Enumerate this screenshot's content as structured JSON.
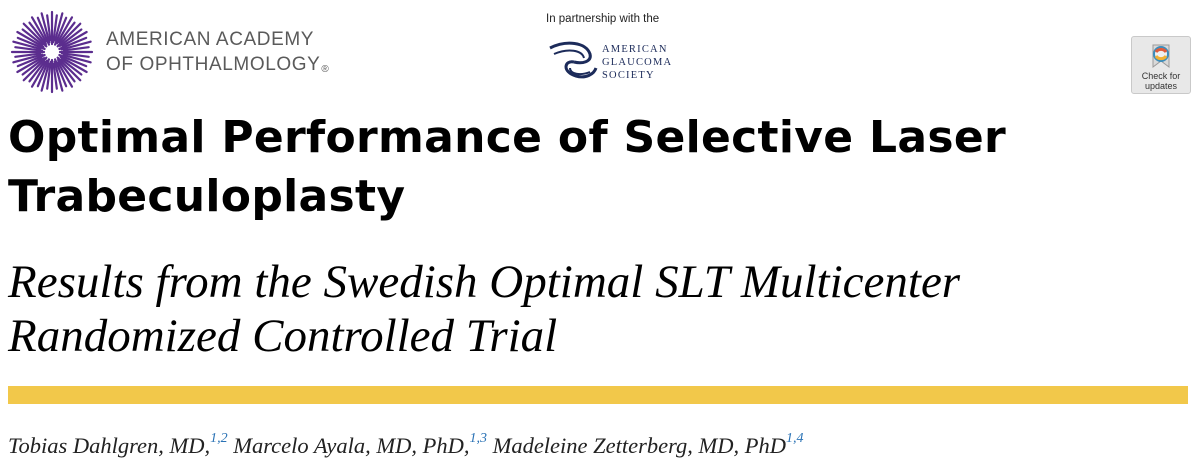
{
  "header": {
    "aao_name_line1": "AMERICAN ACADEMY",
    "aao_name_line2": "OF OPHTHALMOLOGY",
    "aao_registered": "®",
    "partnership_label": "In partnership with the",
    "ags_line1": "American",
    "ags_line2": "Glaucoma",
    "ags_line3": "Society",
    "check_updates_line1": "Check for",
    "check_updates_line2": "updates"
  },
  "article": {
    "title": "Optimal Performance of Selective Laser Trabeculoplasty",
    "subtitle": "Results from the Swedish Optimal SLT Multicenter Randomized Controlled Trial"
  },
  "authors": [
    {
      "name": "Tobias Dahlgren, MD,",
      "affil": "1,2"
    },
    {
      "name": "Marcelo Ayala, MD, PhD,",
      "affil": "1,3"
    },
    {
      "name": "Madeleine Zetterberg, MD, PhD",
      "affil": "1,4"
    }
  ],
  "colors": {
    "aao_purple": "#5b2d8e",
    "ags_navy": "#1c2b5a",
    "rule_yellow": "#f2c84a",
    "affil_blue": "#2a72b5"
  }
}
